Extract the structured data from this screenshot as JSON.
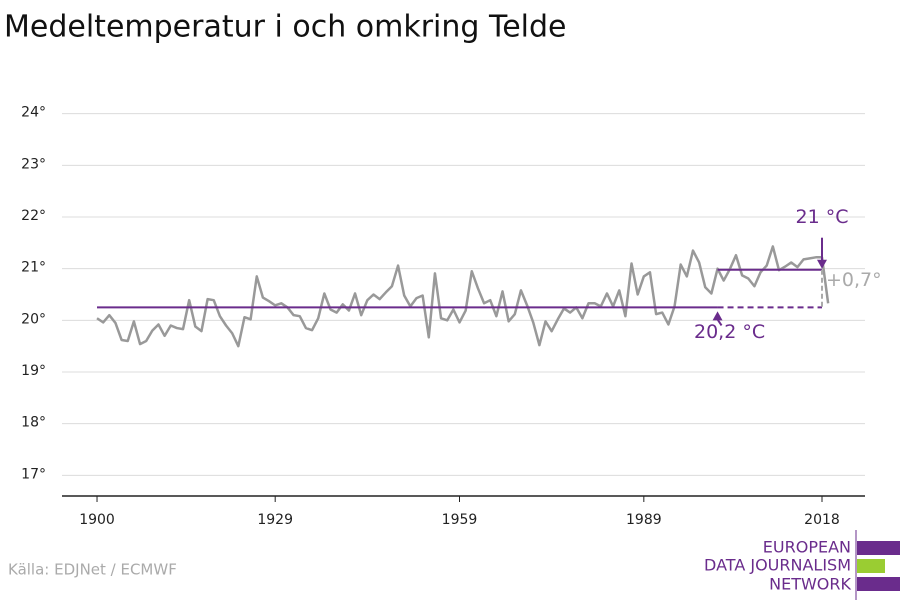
{
  "chart_data": {
    "type": "line",
    "title": "Medeltemperatur i och omkring Telde",
    "source": "Källa: EDJNet / ECMWF",
    "x": [
      1900,
      1901,
      1902,
      1903,
      1904,
      1905,
      1906,
      1907,
      1908,
      1909,
      1910,
      1911,
      1912,
      1913,
      1914,
      1915,
      1916,
      1917,
      1918,
      1919,
      1920,
      1921,
      1922,
      1923,
      1924,
      1925,
      1926,
      1927,
      1928,
      1929,
      1930,
      1931,
      1932,
      1933,
      1934,
      1935,
      1936,
      1937,
      1938,
      1939,
      1940,
      1941,
      1942,
      1943,
      1944,
      1945,
      1946,
      1947,
      1948,
      1949,
      1950,
      1951,
      1952,
      1953,
      1954,
      1955,
      1956,
      1957,
      1958,
      1959,
      1960,
      1961,
      1962,
      1963,
      1964,
      1965,
      1966,
      1967,
      1968,
      1969,
      1970,
      1971,
      1972,
      1973,
      1974,
      1975,
      1976,
      1977,
      1978,
      1979,
      1980,
      1981,
      1982,
      1983,
      1984,
      1985,
      1986,
      1987,
      1988,
      1989,
      1990,
      1991,
      1992,
      1993,
      1994,
      1995,
      1996,
      1997,
      1998,
      1999,
      2000,
      2001,
      2002,
      2003,
      2004,
      2005,
      2006,
      2007,
      2008,
      2009,
      2010,
      2011,
      2012,
      2013,
      2014,
      2015,
      2016,
      2017,
      2018,
      2019
    ],
    "series": [
      {
        "color": "#999999",
        "values": [
          20.04,
          19.96,
          20.1,
          19.95,
          19.62,
          19.6,
          19.98,
          19.54,
          19.6,
          19.8,
          19.92,
          19.7,
          19.9,
          19.85,
          19.83,
          20.39,
          19.88,
          19.79,
          20.41,
          20.39,
          20.08,
          19.9,
          19.75,
          19.5,
          20.06,
          20.02,
          20.85,
          20.44,
          20.37,
          20.29,
          20.33,
          20.25,
          20.1,
          20.08,
          19.85,
          19.81,
          20.04,
          20.52,
          20.21,
          20.15,
          20.31,
          20.19,
          20.52,
          20.1,
          20.39,
          20.5,
          20.41,
          20.54,
          20.66,
          21.06,
          20.48,
          20.27,
          20.43,
          20.48,
          19.67,
          20.91,
          20.04,
          20.0,
          20.21,
          19.96,
          20.19,
          20.95,
          20.62,
          20.33,
          20.39,
          20.08,
          20.56,
          19.98,
          20.12,
          20.58,
          20.29,
          19.96,
          19.52,
          19.98,
          19.79,
          20.02,
          20.23,
          20.15,
          20.25,
          20.04,
          20.33,
          20.33,
          20.27,
          20.52,
          20.27,
          20.58,
          20.08,
          21.1,
          20.5,
          20.85,
          20.93,
          20.12,
          20.15,
          19.92,
          20.27,
          21.08,
          20.85,
          21.35,
          21.12,
          20.64,
          20.52,
          21.0,
          20.77,
          20.99,
          21.26,
          20.87,
          20.81,
          20.66,
          20.93,
          21.06,
          21.43,
          20.97,
          21.04,
          21.12,
          21.03,
          21.18,
          21.2,
          21.22,
          21.22,
          20.33
        ]
      }
    ],
    "xlim": [
      1894.3,
      2025
    ],
    "xticks": [
      1900,
      1929,
      1959,
      1989,
      2018
    ],
    "ylim": [
      16.6,
      24.4
    ],
    "yticks": [
      {
        "value": 17,
        "label": "17°"
      },
      {
        "value": 18,
        "label": "18°"
      },
      {
        "value": 19,
        "label": "19°"
      },
      {
        "value": 20,
        "label": "20°"
      },
      {
        "value": 21,
        "label": "21°"
      },
      {
        "value": 22,
        "label": "22°"
      },
      {
        "value": 23,
        "label": "23°"
      },
      {
        "value": 24,
        "label": "24°"
      }
    ],
    "grid": true,
    "baseline": {
      "value": 20.25,
      "label": "20,2 °C",
      "solid_x": [
        1900,
        2001
      ],
      "dashed_x": [
        2001,
        2018
      ],
      "color": "#6a2c8c"
    },
    "recent": {
      "value": 20.98,
      "label": "21 °C",
      "x": [
        2001,
        2018
      ],
      "color": "#6a2c8c"
    },
    "difference": {
      "label": "+0,7°",
      "x": 2018,
      "color": "#aaaaaa"
    }
  },
  "logo": {
    "lines": [
      "EUROPEAN",
      "DATA JOURNALISM",
      "NETWORK"
    ]
  }
}
